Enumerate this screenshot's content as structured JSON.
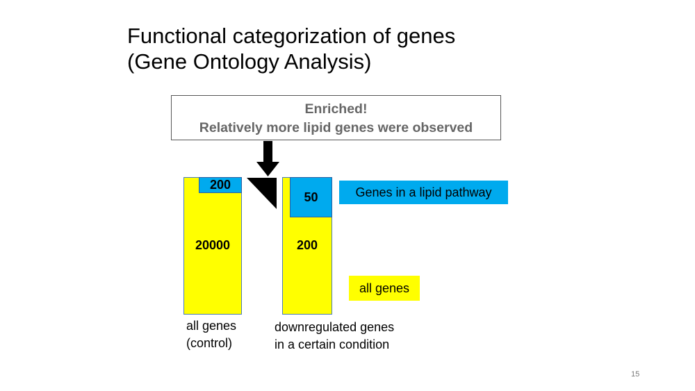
{
  "title": {
    "line1": "Functional categorization of genes",
    "line2": "(Gene Ontology Analysis)"
  },
  "callout": {
    "line1": "Enriched!",
    "line2": "Relatively more lipid genes were observed"
  },
  "bars": {
    "control": {
      "total_label": "20000",
      "lipid_label": "200",
      "caption_line1": "all genes",
      "caption_line2": "(control)"
    },
    "downregulated": {
      "total_label": "200",
      "lipid_label": "50",
      "caption_line1": "downregulated genes",
      "caption_line2": "in a certain condition"
    }
  },
  "legend": {
    "lipid": "Genes in a lipid pathway",
    "all": "all genes"
  },
  "colors": {
    "all_genes": "#ffff00",
    "lipid_genes": "#00aaee"
  },
  "page_number": "15"
}
